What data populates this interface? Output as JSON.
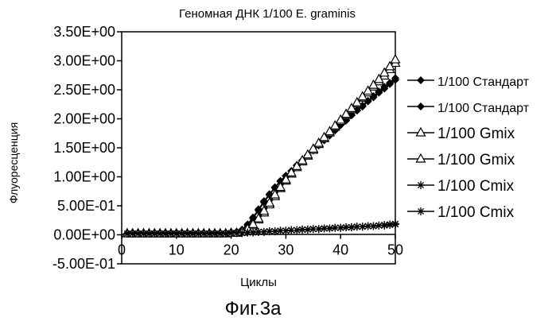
{
  "chart_data": {
    "type": "line",
    "title": "Геномная ДНК 1/100  E. graminis",
    "xlabel": "Циклы",
    "ylabel": "Флуоресценция",
    "xlim": [
      0,
      50
    ],
    "ylim": [
      -0.5,
      3.5
    ],
    "x_ticks": [
      "0",
      "10",
      "20",
      "30",
      "40",
      "50"
    ],
    "y_ticks": [
      "3.50E+00",
      "3.00E+00",
      "2.50E+00",
      "2.00E+00",
      "1.50E+00",
      "1.00E+00",
      "5.00E-01",
      "0.00E+00",
      "-5.00E-01"
    ],
    "y_tick_values": [
      3.5,
      3.0,
      2.5,
      2.0,
      1.5,
      1.0,
      0.5,
      0.0,
      -0.5
    ],
    "x_tick_values": [
      0,
      10,
      20,
      30,
      40,
      50
    ],
    "grid": false,
    "legend_position": "right",
    "caption": "Фиг.3а",
    "series": [
      {
        "name": "1/100 Стандарт",
        "marker": "diamond",
        "x": [
          1,
          2,
          3,
          4,
          5,
          6,
          7,
          8,
          9,
          10,
          11,
          12,
          13,
          14,
          15,
          16,
          17,
          18,
          19,
          20,
          21,
          22,
          23,
          24,
          25,
          26,
          27,
          28,
          29,
          30,
          31,
          32,
          33,
          34,
          35,
          36,
          37,
          38,
          39,
          40,
          41,
          42,
          43,
          44,
          45,
          46,
          47,
          48,
          49,
          50
        ],
        "y": [
          0.02,
          0.02,
          0.02,
          0.02,
          0.02,
          0.02,
          0.02,
          0.02,
          0.02,
          0.02,
          0.02,
          0.02,
          0.02,
          0.02,
          0.02,
          0.02,
          0.02,
          0.02,
          0.03,
          0.03,
          0.05,
          0.09,
          0.18,
          0.3,
          0.44,
          0.58,
          0.7,
          0.82,
          0.93,
          1.02,
          1.1,
          1.2,
          1.28,
          1.37,
          1.45,
          1.54,
          1.63,
          1.71,
          1.8,
          1.89,
          1.97,
          2.06,
          2.14,
          2.21,
          2.3,
          2.37,
          2.45,
          2.52,
          2.6,
          2.67
        ]
      },
      {
        "name": "1/100 Стандарт",
        "marker": "diamond",
        "x": [
          1,
          2,
          3,
          4,
          5,
          6,
          7,
          8,
          9,
          10,
          11,
          12,
          13,
          14,
          15,
          16,
          17,
          18,
          19,
          20,
          21,
          22,
          23,
          24,
          25,
          26,
          27,
          28,
          29,
          30,
          31,
          32,
          33,
          34,
          35,
          36,
          37,
          38,
          39,
          40,
          41,
          42,
          43,
          44,
          45,
          46,
          47,
          48,
          49,
          50
        ],
        "y": [
          0.02,
          0.02,
          0.02,
          0.02,
          0.02,
          0.02,
          0.02,
          0.02,
          0.02,
          0.02,
          0.02,
          0.02,
          0.02,
          0.02,
          0.02,
          0.02,
          0.02,
          0.02,
          0.03,
          0.03,
          0.04,
          0.08,
          0.16,
          0.28,
          0.42,
          0.56,
          0.69,
          0.81,
          0.92,
          1.01,
          1.1,
          1.19,
          1.28,
          1.37,
          1.46,
          1.55,
          1.63,
          1.72,
          1.81,
          1.9,
          1.98,
          2.07,
          2.15,
          2.23,
          2.31,
          2.39,
          2.47,
          2.55,
          2.62,
          2.7
        ]
      },
      {
        "name": "1/100 Gmix",
        "marker": "triangle",
        "x": [
          1,
          2,
          3,
          4,
          5,
          6,
          7,
          8,
          9,
          10,
          11,
          12,
          13,
          14,
          15,
          16,
          17,
          18,
          19,
          20,
          21,
          22,
          23,
          24,
          25,
          26,
          27,
          28,
          29,
          30,
          31,
          32,
          33,
          34,
          35,
          36,
          37,
          38,
          39,
          40,
          41,
          42,
          43,
          44,
          45,
          46,
          47,
          48,
          49,
          50
        ],
        "y": [
          0.02,
          0.02,
          0.02,
          0.02,
          0.02,
          0.02,
          0.02,
          0.02,
          0.02,
          0.02,
          0.02,
          0.02,
          0.02,
          0.02,
          0.02,
          0.02,
          0.02,
          0.02,
          0.02,
          0.03,
          0.03,
          0.05,
          0.09,
          0.16,
          0.26,
          0.38,
          0.52,
          0.66,
          0.8,
          0.93,
          1.05,
          1.16,
          1.26,
          1.36,
          1.46,
          1.56,
          1.66,
          1.76,
          1.86,
          1.96,
          2.06,
          2.16,
          2.26,
          2.36,
          2.45,
          2.55,
          2.64,
          2.74,
          2.85,
          2.96
        ]
      },
      {
        "name": "1/100 Gmix",
        "marker": "triangle",
        "x": [
          1,
          2,
          3,
          4,
          5,
          6,
          7,
          8,
          9,
          10,
          11,
          12,
          13,
          14,
          15,
          16,
          17,
          18,
          19,
          20,
          21,
          22,
          23,
          24,
          25,
          26,
          27,
          28,
          29,
          30,
          31,
          32,
          33,
          34,
          35,
          36,
          37,
          38,
          39,
          40,
          41,
          42,
          43,
          44,
          45,
          46,
          47,
          48,
          49,
          50
        ],
        "y": [
          0.02,
          0.02,
          0.02,
          0.02,
          0.02,
          0.02,
          0.02,
          0.02,
          0.02,
          0.02,
          0.02,
          0.02,
          0.02,
          0.02,
          0.02,
          0.02,
          0.02,
          0.02,
          0.02,
          0.03,
          0.03,
          0.05,
          0.1,
          0.18,
          0.28,
          0.41,
          0.55,
          0.69,
          0.82,
          0.95,
          1.07,
          1.18,
          1.28,
          1.38,
          1.48,
          1.58,
          1.68,
          1.78,
          1.88,
          1.98,
          2.08,
          2.18,
          2.28,
          2.38,
          2.48,
          2.58,
          2.68,
          2.79,
          2.9,
          3.02
        ]
      },
      {
        "name": "1/100 Cmix",
        "marker": "asterisk",
        "x": [
          1,
          2,
          3,
          4,
          5,
          6,
          7,
          8,
          9,
          10,
          11,
          12,
          13,
          14,
          15,
          16,
          17,
          18,
          19,
          20,
          21,
          22,
          23,
          24,
          25,
          26,
          27,
          28,
          29,
          30,
          31,
          32,
          33,
          34,
          35,
          36,
          37,
          38,
          39,
          40,
          41,
          42,
          43,
          44,
          45,
          46,
          47,
          48,
          49,
          50
        ],
        "y": [
          0.02,
          0.02,
          0.02,
          0.02,
          0.02,
          0.02,
          0.02,
          0.02,
          0.02,
          0.02,
          0.02,
          0.02,
          0.02,
          0.02,
          0.02,
          0.02,
          0.02,
          0.02,
          0.02,
          0.03,
          0.03,
          0.03,
          0.04,
          0.04,
          0.05,
          0.05,
          0.06,
          0.06,
          0.07,
          0.07,
          0.08,
          0.08,
          0.09,
          0.09,
          0.1,
          0.1,
          0.11,
          0.11,
          0.12,
          0.12,
          0.13,
          0.13,
          0.14,
          0.14,
          0.15,
          0.15,
          0.16,
          0.16,
          0.17,
          0.18
        ]
      },
      {
        "name": "1/100 Cmix",
        "marker": "asterisk",
        "x": [
          1,
          2,
          3,
          4,
          5,
          6,
          7,
          8,
          9,
          10,
          11,
          12,
          13,
          14,
          15,
          16,
          17,
          18,
          19,
          20,
          21,
          22,
          23,
          24,
          25,
          26,
          27,
          28,
          29,
          30,
          31,
          32,
          33,
          34,
          35,
          36,
          37,
          38,
          39,
          40,
          41,
          42,
          43,
          44,
          45,
          46,
          47,
          48,
          49,
          50
        ],
        "y": [
          0.02,
          0.02,
          0.02,
          0.02,
          0.02,
          0.02,
          0.02,
          0.02,
          0.02,
          0.02,
          0.02,
          0.02,
          0.02,
          0.02,
          0.02,
          0.02,
          0.02,
          0.02,
          0.02,
          0.03,
          0.03,
          0.03,
          0.04,
          0.04,
          0.05,
          0.05,
          0.06,
          0.06,
          0.07,
          0.07,
          0.08,
          0.08,
          0.09,
          0.09,
          0.1,
          0.1,
          0.11,
          0.11,
          0.12,
          0.12,
          0.13,
          0.13,
          0.14,
          0.14,
          0.15,
          0.15,
          0.16,
          0.17,
          0.18,
          0.19
        ]
      }
    ]
  }
}
